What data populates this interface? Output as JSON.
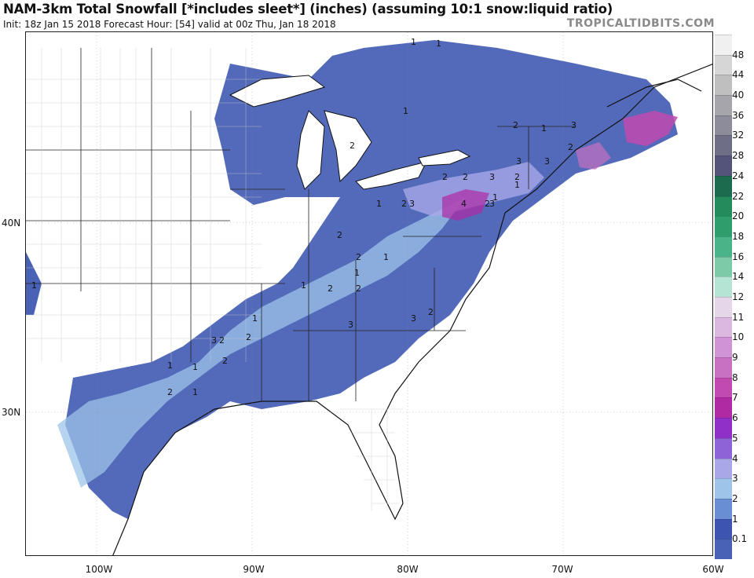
{
  "header": {
    "title": "NAM-3km Total Snowfall [*includes sleet*] (inches) (assuming 10:1 snow:liquid ratio)",
    "subtitle": "Init: 18z Jan 15 2018   Forecast Hour: [54]   valid at 00z Thu, Jan 18 2018",
    "brand": "TROPICALTIDBITS.COM"
  },
  "map": {
    "lat_labels": [
      "40N",
      "30N"
    ],
    "lon_labels": [
      "100W",
      "90W",
      "80W",
      "70W",
      "60W"
    ],
    "contour_labels": [
      "1",
      "1",
      "1",
      "2",
      "2",
      "2",
      "3",
      "2",
      "3",
      "3",
      "2",
      "4",
      "3",
      "1",
      "3",
      "2",
      "2",
      "1",
      "2",
      "3",
      "2",
      "1",
      "2",
      "1",
      "1",
      "2",
      "2",
      "2",
      "3",
      "1",
      "1",
      "3",
      "2",
      "1",
      "1",
      "3",
      "1",
      "2",
      "2",
      "1",
      "1",
      "2"
    ]
  },
  "legend": {
    "labels": [
      "48",
      "44",
      "40",
      "36",
      "32",
      "28",
      "24",
      "22",
      "20",
      "18",
      "16",
      "14",
      "12",
      "11",
      "10",
      "9",
      "8",
      "7",
      "6",
      "5",
      "4",
      "3",
      "2",
      "1",
      "0.1"
    ],
    "colors": [
      "#f0f0f0",
      "#d6d6d6",
      "#bfbfbf",
      "#a5a5ab",
      "#8c8c9a",
      "#6e6e86",
      "#54547a",
      "#1c6b4e",
      "#238b5c",
      "#2f9e6c",
      "#48b487",
      "#7ccaa8",
      "#b4e4d4",
      "#e6d6ea",
      "#dbb8e0",
      "#d094d4",
      "#c870c2",
      "#c04ab0",
      "#b02aa4",
      "#9030c8",
      "#8f63d8",
      "#a8a8e8",
      "#9ec4ea",
      "#6a8ed4",
      "#3d55b0",
      "#4a62b6"
    ]
  },
  "chart_data": {
    "type": "heatmap",
    "title": "NAM-3km Total Snowfall [*includes sleet*] (inches) (assuming 10:1 snow:liquid ratio)",
    "units": "inches",
    "color_scale_breaks": [
      0.1,
      1,
      2,
      3,
      4,
      5,
      6,
      7,
      8,
      9,
      10,
      11,
      12,
      14,
      16,
      18,
      20,
      22,
      24,
      28,
      32,
      36,
      40,
      44,
      48
    ],
    "lon_ticks": [
      "100W",
      "90W",
      "80W",
      "70W",
      "60W"
    ],
    "lat_ticks": [
      "40N",
      "30N"
    ]
  }
}
